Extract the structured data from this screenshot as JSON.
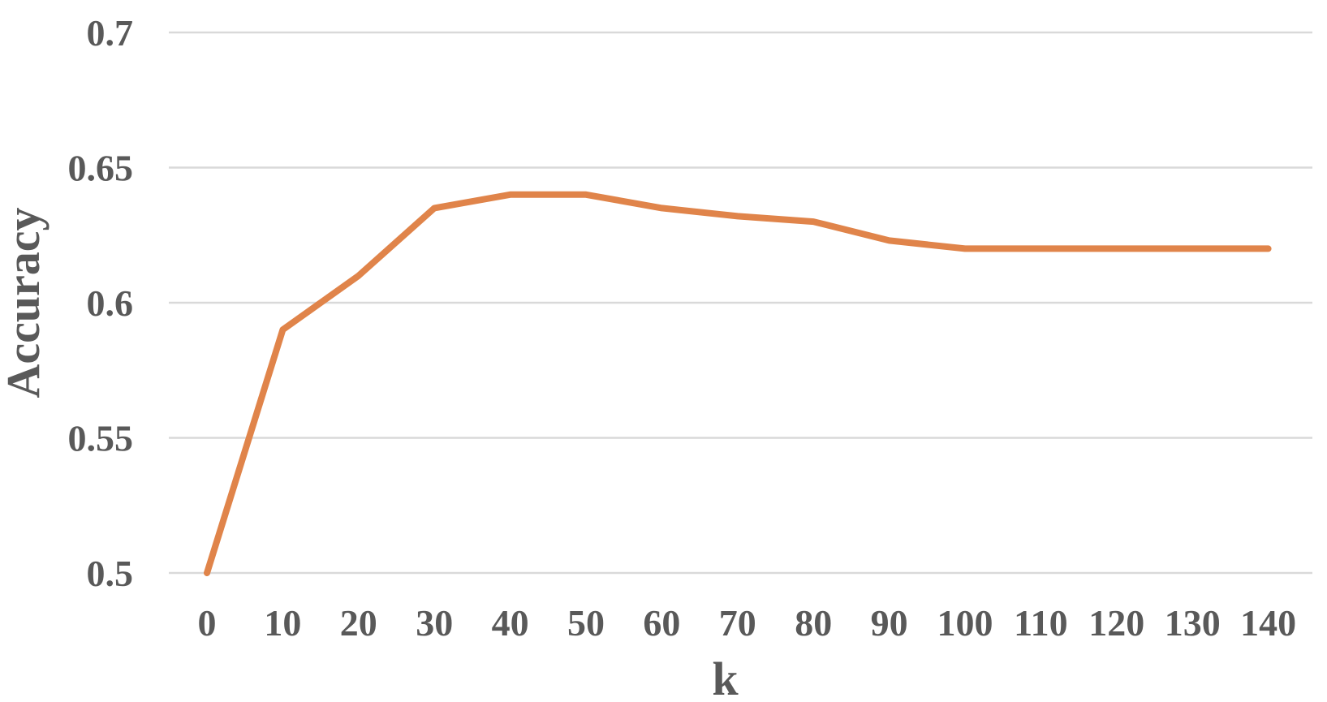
{
  "chart_data": {
    "type": "line",
    "title": "",
    "xlabel": "k",
    "ylabel": "Accuracy",
    "categories": [
      "0",
      "10",
      "20",
      "30",
      "40",
      "50",
      "60",
      "70",
      "80",
      "90",
      "100",
      "110",
      "120",
      "130",
      "140"
    ],
    "series": [
      {
        "values": [
          0.5,
          0.59,
          0.61,
          0.635,
          0.64,
          0.64,
          0.635,
          0.632,
          0.63,
          0.623,
          0.62,
          0.62,
          0.62,
          0.62,
          0.62
        ],
        "color": "#E0844A"
      }
    ],
    "ylim": [
      0.5,
      0.7
    ],
    "yticks": [
      "0.5",
      "0.55",
      "0.6",
      "0.65",
      "0.7"
    ],
    "grid": true,
    "legend": "none"
  }
}
